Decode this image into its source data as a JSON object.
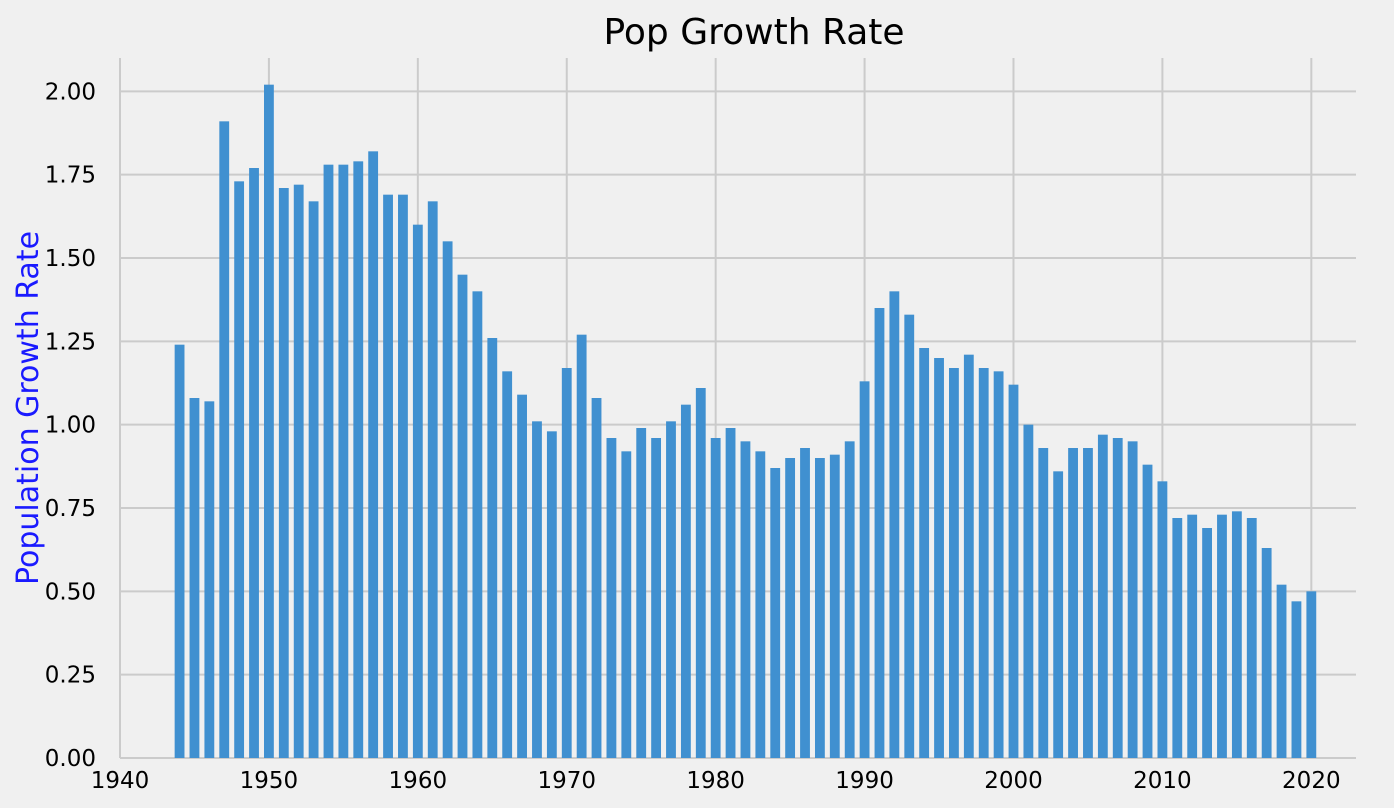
{
  "chart_data": {
    "type": "bar",
    "title": "Pop Growth Rate",
    "xlabel": "",
    "ylabel": "Population Growth Rate",
    "ylabel_color": "#1a1aff",
    "bar_color": "#4090d0",
    "background_color": "#f0f0f0",
    "grid": true,
    "grid_color": "#cbcbcb",
    "xlim": [
      1940,
      2023
    ],
    "ylim": [
      0,
      2.1
    ],
    "xticks": [
      "1940",
      "1950",
      "1960",
      "1970",
      "1980",
      "1990",
      "2000",
      "2010",
      "2020"
    ],
    "yticks": [
      "0.00",
      "0.25",
      "0.50",
      "0.75",
      "1.00",
      "1.25",
      "1.50",
      "1.75",
      "2.00"
    ],
    "x": [
      1944,
      1945,
      1946,
      1947,
      1948,
      1949,
      1950,
      1951,
      1952,
      1953,
      1954,
      1955,
      1956,
      1957,
      1958,
      1959,
      1960,
      1961,
      1962,
      1963,
      1964,
      1965,
      1966,
      1967,
      1968,
      1969,
      1970,
      1971,
      1972,
      1973,
      1974,
      1975,
      1976,
      1977,
      1978,
      1979,
      1980,
      1981,
      1982,
      1983,
      1984,
      1985,
      1986,
      1987,
      1988,
      1989,
      1990,
      1991,
      1992,
      1993,
      1994,
      1995,
      1996,
      1997,
      1998,
      1999,
      2000,
      2001,
      2002,
      2003,
      2004,
      2005,
      2006,
      2007,
      2008,
      2009,
      2010,
      2011,
      2012,
      2013,
      2014,
      2015,
      2016,
      2017,
      2018,
      2019,
      2020
    ],
    "values": [
      1.24,
      1.08,
      1.07,
      1.91,
      1.73,
      1.77,
      2.02,
      1.71,
      1.72,
      1.67,
      1.78,
      1.78,
      1.79,
      1.82,
      1.69,
      1.69,
      1.6,
      1.67,
      1.55,
      1.45,
      1.4,
      1.26,
      1.16,
      1.09,
      1.01,
      0.98,
      1.17,
      1.27,
      1.08,
      0.96,
      0.92,
      0.99,
      0.96,
      1.01,
      1.06,
      1.11,
      0.96,
      0.99,
      0.95,
      0.92,
      0.87,
      0.9,
      0.93,
      0.9,
      0.91,
      0.95,
      1.13,
      1.35,
      1.4,
      1.33,
      1.23,
      1.2,
      1.17,
      1.21,
      1.17,
      1.16,
      1.12,
      1.0,
      0.93,
      0.86,
      0.93,
      0.93,
      0.97,
      0.96,
      0.95,
      0.88,
      0.83,
      0.72,
      0.73,
      0.69,
      0.73,
      0.74,
      0.72,
      0.63,
      0.52,
      0.47,
      0.5
    ]
  }
}
